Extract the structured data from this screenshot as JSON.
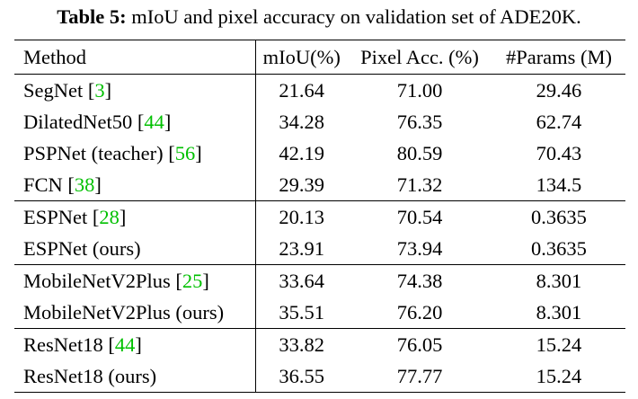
{
  "caption": {
    "label": "Table 5:",
    "text": " mIoU and pixel accuracy on validation set of ADE20K."
  },
  "table": {
    "headers": [
      "Method",
      "mIoU(%)",
      "Pixel Acc. (%)",
      "#Params (M)"
    ],
    "groups": [
      [
        {
          "method": "SegNet ",
          "open": "[",
          "ref": "3",
          "close": "]",
          "miou": "21.64",
          "acc": "71.00",
          "params": "29.46"
        },
        {
          "method": "DilatedNet50 ",
          "open": "[",
          "ref": "44",
          "close": "]",
          "miou": "34.28",
          "acc": "76.35",
          "params": "62.74"
        },
        {
          "method": "PSPNet (teacher) ",
          "open": "[",
          "ref": "56",
          "close": "]",
          "miou": "42.19",
          "acc": "80.59",
          "params": "70.43"
        },
        {
          "method": "FCN ",
          "open": "[",
          "ref": "38",
          "close": "]",
          "miou": "29.39",
          "acc": "71.32",
          "params": "134.5"
        }
      ],
      [
        {
          "method": "ESPNet ",
          "open": "[",
          "ref": "28",
          "close": "]",
          "miou": "20.13",
          "acc": "70.54",
          "params": "0.3635"
        },
        {
          "method": "ESPNet (ours)",
          "miou": "23.91",
          "acc": "73.94",
          "params": "0.3635"
        }
      ],
      [
        {
          "method": "MobileNetV2Plus ",
          "open": "[",
          "ref": "25",
          "close": "]",
          "miou": "33.64",
          "acc": "74.38",
          "params": "8.301"
        },
        {
          "method": "MobileNetV2Plus (ours)",
          "miou": "35.51",
          "acc": "76.20",
          "params": "8.301"
        }
      ],
      [
        {
          "method": "ResNet18 ",
          "open": "[",
          "ref": "44",
          "close": "]",
          "miou": "33.82",
          "acc": "76.05",
          "params": "15.24"
        },
        {
          "method": "ResNet18 (ours)",
          "miou": "36.55",
          "acc": "77.77",
          "params": "15.24"
        }
      ]
    ]
  }
}
